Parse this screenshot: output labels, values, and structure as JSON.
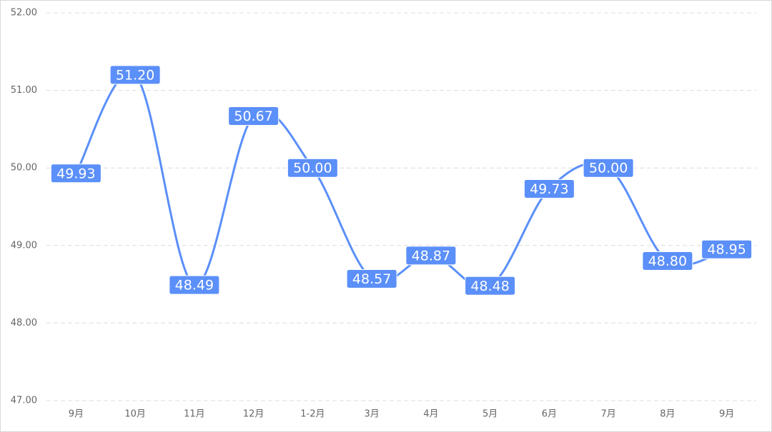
{
  "chart_data": {
    "type": "line",
    "categories": [
      "9月",
      "10月",
      "11月",
      "12月",
      "1-2月",
      "3月",
      "4月",
      "5月",
      "6月",
      "7月",
      "8月",
      "9月"
    ],
    "values": [
      49.93,
      51.2,
      48.49,
      50.67,
      50,
      48.57,
      48.87,
      48.48,
      49.73,
      50,
      48.8,
      48.95
    ],
    "value_labels": [
      "49.93",
      "51.20",
      "48.49",
      "50.67",
      "50.00",
      "48.57",
      "48.87",
      "48.48",
      "49.73",
      "50.00",
      "48.80",
      "48.95"
    ],
    "color": "#5b8ff9",
    "ylim": [
      47,
      52
    ],
    "yticks": [
      {
        "value": 47,
        "label": "47.00"
      },
      {
        "value": 48,
        "label": "48.00"
      },
      {
        "value": 49,
        "label": "49.00"
      },
      {
        "value": 50,
        "label": "50.00"
      },
      {
        "value": 51,
        "label": "51.00"
      },
      {
        "value": 52,
        "label": "52.00"
      }
    ],
    "grid": true
  }
}
